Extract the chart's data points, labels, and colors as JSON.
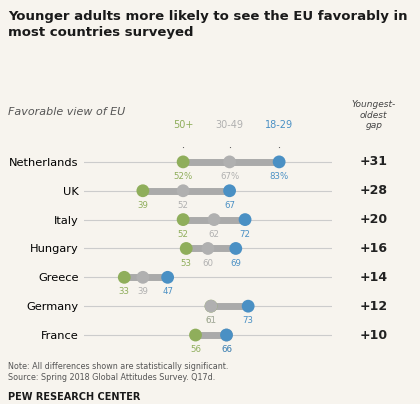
{
  "title": "Younger adults more likely to see the EU favorably in\nmost countries surveyed",
  "subtitle": "Favorable view of EU",
  "note": "Note: All differences shown are statistically significant.\nSource: Spring 2018 Global Attitudes Survey. Q17d.",
  "source_label": "PEW RESEARCH CENTER",
  "ages": [
    "50+",
    "30-49",
    "18-29"
  ],
  "right_label": "Youngest-\noldest\ngap",
  "countries": [
    "Netherlands",
    "UK",
    "Italy",
    "Hungary",
    "Greece",
    "Germany",
    "France"
  ],
  "gaps": [
    "+31",
    "+28",
    "+20",
    "+16",
    "+14",
    "+12",
    "+10"
  ],
  "data": {
    "Netherlands": {
      "50+": 52,
      "30-49": 67,
      "18-29": 83
    },
    "UK": {
      "50+": 39,
      "30-49": 52,
      "18-29": 67
    },
    "Italy": {
      "50+": 52,
      "30-49": 62,
      "18-29": 72
    },
    "Hungary": {
      "50+": 53,
      "30-49": 60,
      "18-29": 69
    },
    "Greece": {
      "50+": 33,
      "30-49": 39,
      "18-29": 47
    },
    "Germany": {
      "50+": 61,
      "30-49": 61,
      "18-29": 73
    },
    "France": {
      "50+": 56,
      "30-49": 66,
      "18-29": 66
    }
  },
  "xmin": 20,
  "xmax": 100,
  "colors": {
    "50+": "#8fae5b",
    "30-49": "#b0b0b0",
    "18-29": "#4a90c4"
  },
  "bg_color": "#f7f4ee",
  "right_panel_color": "#ede9df"
}
